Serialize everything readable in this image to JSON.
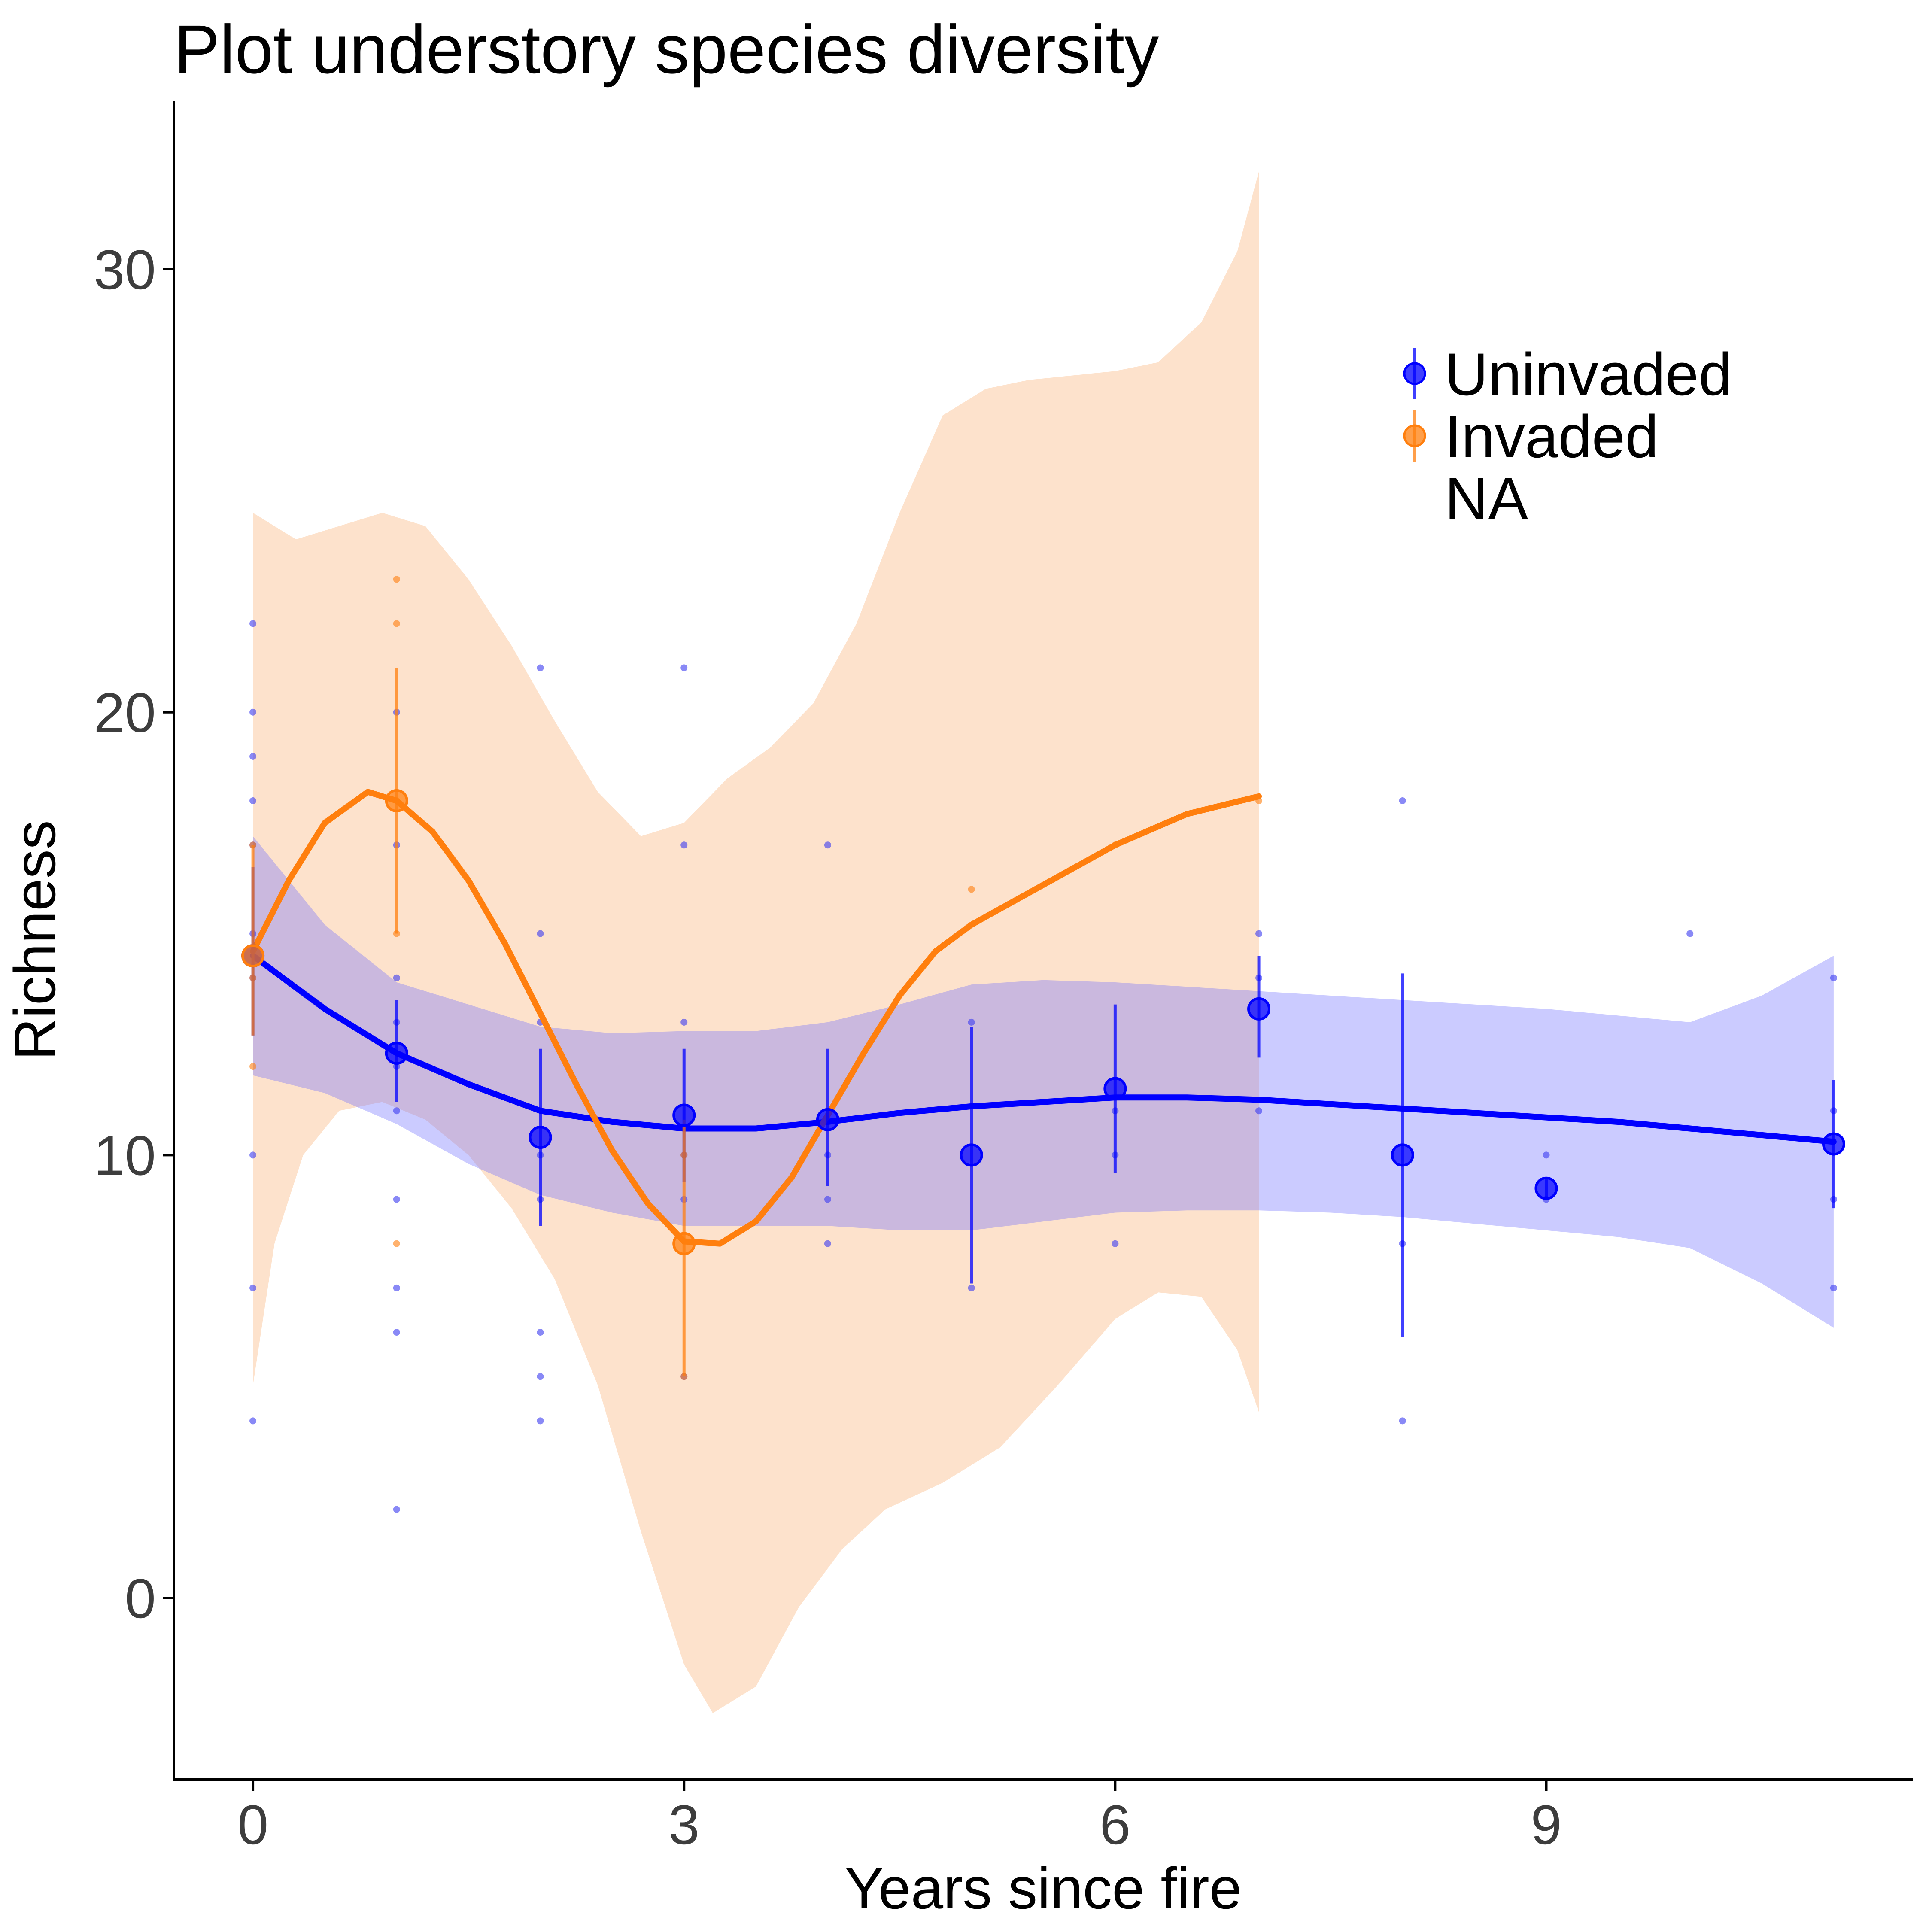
{
  "chart_data": {
    "type": "scatter",
    "title": "Plot understory species diversity",
    "xlabel": "Years since fire",
    "ylabel": "Richness",
    "xlim": [
      -0.55,
      11.55
    ],
    "ylim": [
      -4.1,
      33.8
    ],
    "xticks": [
      0,
      3,
      6,
      9
    ],
    "yticks": [
      0,
      10,
      20,
      30
    ],
    "grid": false,
    "legend_position": "top-right",
    "legend": [
      {
        "label": "Uninvaded",
        "color": "#0000ff"
      },
      {
        "label": "Invaded",
        "color": "#ff7f0e"
      },
      {
        "label": "NA",
        "color": ""
      }
    ],
    "colors": {
      "uninvaded": "#0000ff",
      "uninvaded_band": "#c8c8ff",
      "invaded": "#ff7f0e",
      "invaded_band": "#fde2cc",
      "overlap_band": "#d4bacd"
    },
    "series": [
      {
        "name": "Uninvaded",
        "raw_points": [
          [
            0,
            22
          ],
          [
            0,
            20
          ],
          [
            0,
            19
          ],
          [
            0,
            18
          ],
          [
            0,
            17
          ],
          [
            0,
            15
          ],
          [
            0,
            14
          ],
          [
            0,
            10
          ],
          [
            0,
            7
          ],
          [
            0,
            4
          ],
          [
            1,
            20
          ],
          [
            1,
            17
          ],
          [
            1,
            14
          ],
          [
            1,
            13
          ],
          [
            1,
            12
          ],
          [
            1,
            11
          ],
          [
            1,
            9
          ],
          [
            1,
            7
          ],
          [
            1,
            6
          ],
          [
            1,
            2
          ],
          [
            2,
            21
          ],
          [
            2,
            15
          ],
          [
            2,
            13
          ],
          [
            2,
            10
          ],
          [
            2,
            9
          ],
          [
            2,
            6
          ],
          [
            2,
            5
          ],
          [
            2,
            4
          ],
          [
            3,
            21
          ],
          [
            3,
            17
          ],
          [
            3,
            13
          ],
          [
            3,
            10
          ],
          [
            3,
            9
          ],
          [
            3,
            5
          ],
          [
            4,
            17
          ],
          [
            4,
            10
          ],
          [
            4,
            9
          ],
          [
            4,
            8
          ],
          [
            5,
            13
          ],
          [
            5,
            7
          ],
          [
            6,
            11
          ],
          [
            6,
            10
          ],
          [
            6,
            8
          ],
          [
            7,
            15
          ],
          [
            7,
            14
          ],
          [
            7,
            11
          ],
          [
            8,
            18
          ],
          [
            8,
            8
          ],
          [
            8,
            4
          ],
          [
            9,
            10
          ],
          [
            9,
            9
          ],
          [
            10,
            15
          ],
          [
            11,
            14
          ],
          [
            11,
            11
          ],
          [
            11,
            9
          ],
          [
            11,
            7
          ]
        ],
        "means": [
          {
            "x": 0,
            "y": 14.5,
            "lo": 12.7,
            "hi": 16.5
          },
          {
            "x": 1,
            "y": 12.3,
            "lo": 11.2,
            "hi": 13.5
          },
          {
            "x": 2,
            "y": 10.4,
            "lo": 8.4,
            "hi": 12.4
          },
          {
            "x": 3,
            "y": 10.9,
            "lo": 9.4,
            "hi": 12.4
          },
          {
            "x": 4,
            "y": 10.8,
            "lo": 9.3,
            "hi": 12.4
          },
          {
            "x": 5,
            "y": 10.0,
            "lo": 7.1,
            "hi": 12.9
          },
          {
            "x": 6,
            "y": 11.5,
            "lo": 9.6,
            "hi": 13.4
          },
          {
            "x": 7,
            "y": 13.3,
            "lo": 12.2,
            "hi": 14.5
          },
          {
            "x": 8,
            "y": 10.0,
            "lo": 5.9,
            "hi": 14.1
          },
          {
            "x": 9,
            "y": 9.25,
            "lo": 9.0,
            "hi": 9.5
          },
          {
            "x": 11,
            "y": 10.25,
            "lo": 8.8,
            "hi": 11.7
          }
        ],
        "smooth": [
          [
            0,
            14.5
          ],
          [
            0.5,
            13.3
          ],
          [
            1,
            12.3
          ],
          [
            1.5,
            11.6
          ],
          [
            2,
            11.0
          ],
          [
            2.5,
            10.75
          ],
          [
            3,
            10.6
          ],
          [
            3.5,
            10.6
          ],
          [
            4,
            10.75
          ],
          [
            4.5,
            10.95
          ],
          [
            5,
            11.1
          ],
          [
            5.5,
            11.2
          ],
          [
            6,
            11.3
          ],
          [
            6.5,
            11.3
          ],
          [
            7,
            11.25
          ],
          [
            7.5,
            11.15
          ],
          [
            8,
            11.05
          ],
          [
            8.5,
            10.95
          ],
          [
            9,
            10.85
          ],
          [
            9.5,
            10.75
          ],
          [
            10,
            10.6
          ],
          [
            10.5,
            10.45
          ],
          [
            11,
            10.3
          ]
        ],
        "band_upper": [
          [
            0,
            17.2
          ],
          [
            0.5,
            15.2
          ],
          [
            1,
            13.9
          ],
          [
            1.5,
            13.4
          ],
          [
            2,
            12.9
          ],
          [
            2.5,
            12.75
          ],
          [
            3,
            12.8
          ],
          [
            3.5,
            12.8
          ],
          [
            4,
            13.0
          ],
          [
            4.5,
            13.4
          ],
          [
            5,
            13.85
          ],
          [
            5.5,
            13.95
          ],
          [
            6,
            13.9
          ],
          [
            6.5,
            13.8
          ],
          [
            7,
            13.7
          ],
          [
            7.5,
            13.6
          ],
          [
            8,
            13.5
          ],
          [
            8.5,
            13.4
          ],
          [
            9,
            13.3
          ],
          [
            9.5,
            13.15
          ],
          [
            10,
            13.0
          ],
          [
            10.5,
            13.6
          ],
          [
            11,
            14.5
          ]
        ],
        "band_lower": [
          [
            0,
            11.8
          ],
          [
            0.5,
            11.4
          ],
          [
            1,
            10.7
          ],
          [
            1.5,
            9.8
          ],
          [
            2,
            9.1
          ],
          [
            2.5,
            8.7
          ],
          [
            3,
            8.4
          ],
          [
            3.5,
            8.4
          ],
          [
            4,
            8.4
          ],
          [
            4.5,
            8.3
          ],
          [
            5,
            8.3
          ],
          [
            5.5,
            8.5
          ],
          [
            6,
            8.7
          ],
          [
            6.5,
            8.75
          ],
          [
            7,
            8.75
          ],
          [
            7.5,
            8.7
          ],
          [
            8,
            8.6
          ],
          [
            8.5,
            8.45
          ],
          [
            9,
            8.3
          ],
          [
            9.5,
            8.15
          ],
          [
            10,
            7.9
          ],
          [
            10.5,
            7.1
          ],
          [
            11,
            6.1
          ]
        ]
      },
      {
        "name": "Invaded",
        "raw_points": [
          [
            0,
            17
          ],
          [
            0,
            14
          ],
          [
            0,
            12
          ],
          [
            1,
            23
          ],
          [
            1,
            22
          ],
          [
            1,
            18
          ],
          [
            1,
            15
          ],
          [
            1,
            8
          ],
          [
            3,
            10
          ],
          [
            3,
            5
          ],
          [
            5,
            16
          ],
          [
            6,
            17
          ],
          [
            7,
            18
          ]
        ],
        "means": [
          {
            "x": 0,
            "y": 14.5,
            "lo": 12.7,
            "hi": 17.0
          },
          {
            "x": 1,
            "y": 18.0,
            "lo": 15.0,
            "hi": 21.0
          },
          {
            "x": 3,
            "y": 8.0,
            "lo": 5.0,
            "hi": 10.8
          }
        ],
        "smooth": [
          [
            0,
            14.6
          ],
          [
            0.25,
            16.2
          ],
          [
            0.5,
            17.5
          ],
          [
            0.8,
            18.2
          ],
          [
            1,
            18.0
          ],
          [
            1.25,
            17.3
          ],
          [
            1.5,
            16.2
          ],
          [
            1.75,
            14.8
          ],
          [
            2,
            13.2
          ],
          [
            2.25,
            11.6
          ],
          [
            2.5,
            10.1
          ],
          [
            2.75,
            8.9
          ],
          [
            3,
            8.05
          ],
          [
            3.25,
            8.0
          ],
          [
            3.5,
            8.5
          ],
          [
            3.75,
            9.5
          ],
          [
            4,
            10.9
          ],
          [
            4.25,
            12.3
          ],
          [
            4.5,
            13.6
          ],
          [
            4.75,
            14.6
          ],
          [
            5,
            15.2
          ],
          [
            5.5,
            16.1
          ],
          [
            6,
            17.0
          ],
          [
            6.5,
            17.7
          ],
          [
            7,
            18.1
          ]
        ],
        "band_upper": [
          [
            0,
            24.5
          ],
          [
            0.3,
            23.9
          ],
          [
            0.6,
            24.2
          ],
          [
            0.9,
            24.5
          ],
          [
            1.2,
            24.2
          ],
          [
            1.5,
            23.0
          ],
          [
            1.8,
            21.5
          ],
          [
            2.1,
            19.8
          ],
          [
            2.4,
            18.2
          ],
          [
            2.7,
            17.2
          ],
          [
            3,
            17.5
          ],
          [
            3.3,
            18.5
          ],
          [
            3.6,
            19.2
          ],
          [
            3.9,
            20.2
          ],
          [
            4.2,
            22.0
          ],
          [
            4.5,
            24.5
          ],
          [
            4.8,
            26.7
          ],
          [
            5.1,
            27.3
          ],
          [
            5.4,
            27.5
          ],
          [
            5.7,
            27.6
          ],
          [
            6,
            27.7
          ],
          [
            6.3,
            27.9
          ],
          [
            6.6,
            28.8
          ],
          [
            6.85,
            30.4
          ],
          [
            7,
            32.2
          ]
        ],
        "band_lower": [
          [
            0,
            4.8
          ],
          [
            0.15,
            8.0
          ],
          [
            0.35,
            10.0
          ],
          [
            0.6,
            11.0
          ],
          [
            0.9,
            11.2
          ],
          [
            1.2,
            10.8
          ],
          [
            1.5,
            10.0
          ],
          [
            1.8,
            8.8
          ],
          [
            2.1,
            7.2
          ],
          [
            2.4,
            4.8
          ],
          [
            2.7,
            1.5
          ],
          [
            3,
            -1.5
          ],
          [
            3.2,
            -2.6
          ],
          [
            3.5,
            -2.0
          ],
          [
            3.8,
            -0.2
          ],
          [
            4.1,
            1.1
          ],
          [
            4.4,
            2.0
          ],
          [
            4.8,
            2.6
          ],
          [
            5.2,
            3.4
          ],
          [
            5.6,
            4.8
          ],
          [
            6,
            6.3
          ],
          [
            6.3,
            6.9
          ],
          [
            6.6,
            6.8
          ],
          [
            6.85,
            5.6
          ],
          [
            7,
            4.2
          ]
        ]
      }
    ]
  }
}
